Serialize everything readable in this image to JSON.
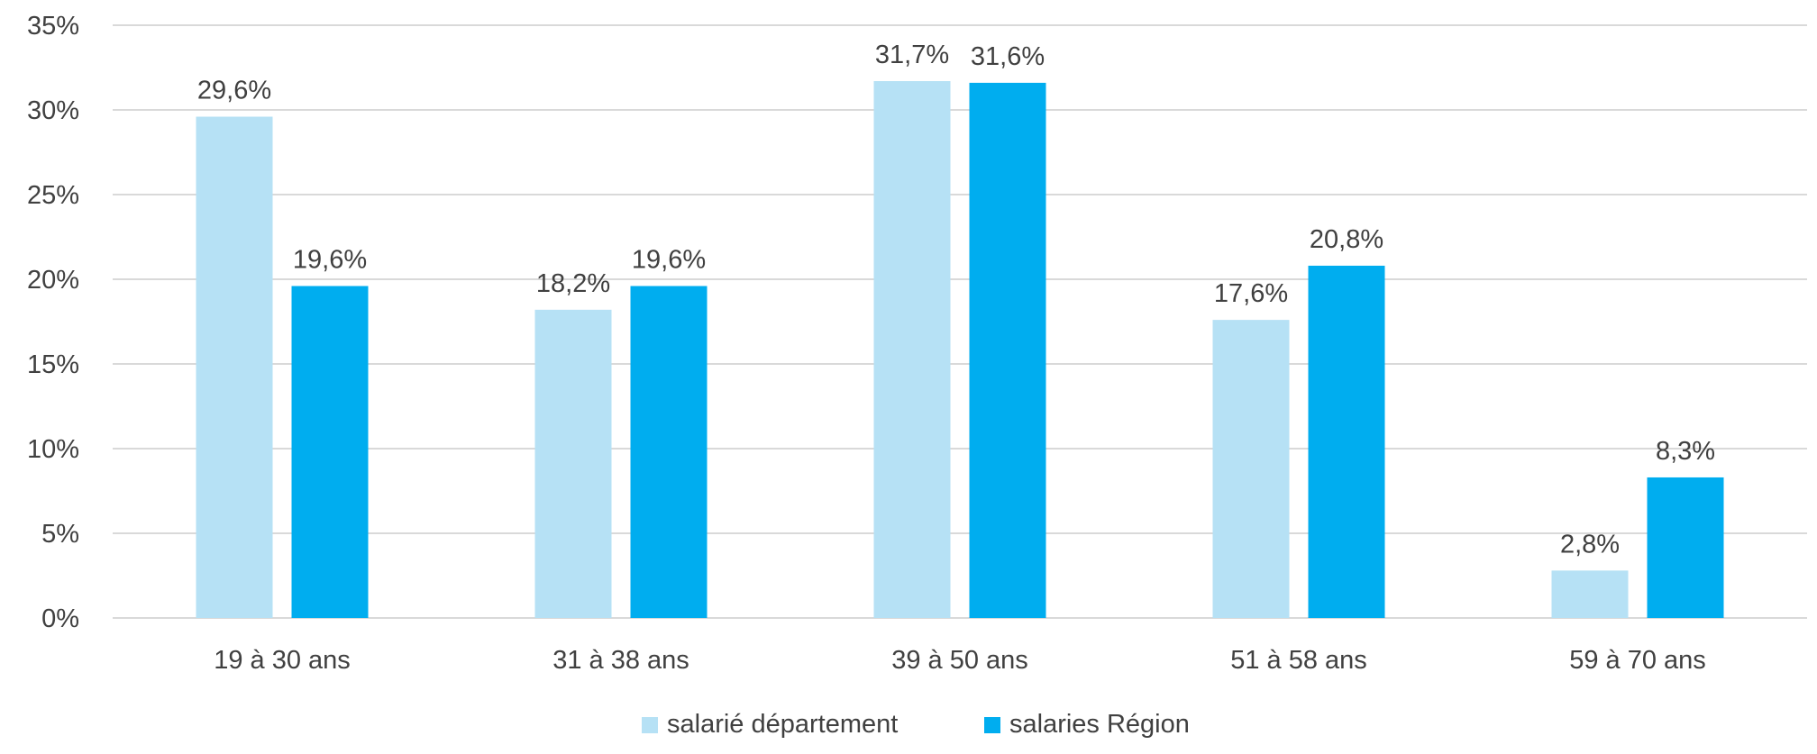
{
  "chart_data": {
    "type": "bar",
    "categories": [
      "19 à 30 ans",
      "31 à 38 ans",
      "39 à 50 ans",
      "51 à 58 ans",
      "59 à 70 ans"
    ],
    "series": [
      {
        "name": "salarié département",
        "color": "#b6e1f5",
        "values": [
          29.6,
          18.2,
          31.7,
          17.6,
          2.8
        ],
        "labels": [
          "29,6%",
          "18,2%",
          "31,7%",
          "17,6%",
          "2,8%"
        ]
      },
      {
        "name": "salaries Région",
        "color": "#00adef",
        "values": [
          19.6,
          19.6,
          31.6,
          20.8,
          8.3
        ],
        "labels": [
          "19,6%",
          "19,6%",
          "31,6%",
          "20,8%",
          "8,3%"
        ]
      }
    ],
    "yticks": [
      "0%",
      "5%",
      "10%",
      "15%",
      "20%",
      "25%",
      "30%",
      "35%"
    ],
    "ylim": [
      0,
      35
    ],
    "ytick_step": 5,
    "grid": true,
    "gridline_color": "#d9d9d9",
    "legend_position": "bottom-center",
    "title": "",
    "xlabel": "",
    "ylabel": ""
  }
}
